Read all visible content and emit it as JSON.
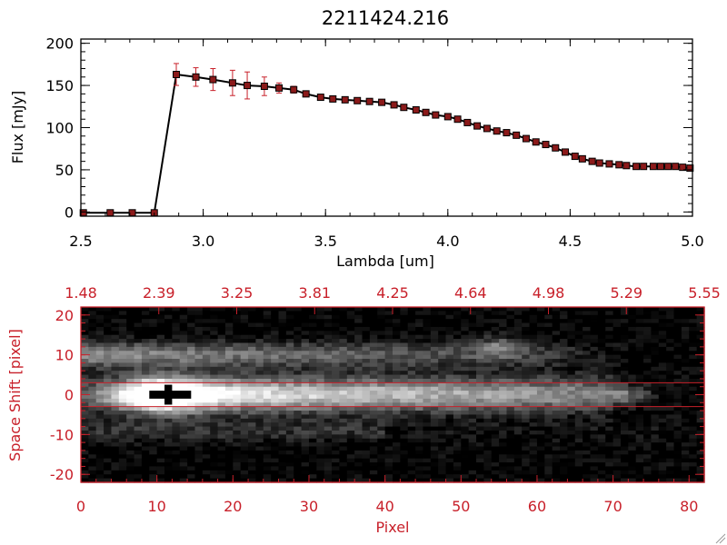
{
  "chart_data": [
    {
      "type": "line",
      "title": "2211424.216",
      "xlabel": "Lambda [um]",
      "ylabel": "Flux [mJy]",
      "xlim": [
        2.5,
        5.0
      ],
      "ylim": [
        -5,
        205
      ],
      "x_ticks": [
        "2.5",
        "3.0",
        "3.5",
        "4.0",
        "4.5",
        "5.0"
      ],
      "y_ticks": [
        "0",
        "50",
        "100",
        "150",
        "200"
      ],
      "series": [
        {
          "color": "#000000",
          "marker_color": "#8b1a1a",
          "errorbar_color": "#c8202a",
          "points": [
            {
              "x": 2.51,
              "y": -1
            },
            {
              "x": 2.62,
              "y": -1
            },
            {
              "x": 2.71,
              "y": -1
            },
            {
              "x": 2.8,
              "y": -1
            },
            {
              "x": 2.89,
              "y": 163,
              "err": 13
            },
            {
              "x": 2.97,
              "y": 160,
              "err": 11
            },
            {
              "x": 3.04,
              "y": 157,
              "err": 13
            },
            {
              "x": 3.12,
              "y": 153,
              "err": 15
            },
            {
              "x": 3.18,
              "y": 150,
              "err": 16
            },
            {
              "x": 3.25,
              "y": 149,
              "err": 11
            },
            {
              "x": 3.31,
              "y": 147,
              "err": 6
            },
            {
              "x": 3.37,
              "y": 145,
              "err": 4
            },
            {
              "x": 3.42,
              "y": 140
            },
            {
              "x": 3.48,
              "y": 136
            },
            {
              "x": 3.53,
              "y": 134
            },
            {
              "x": 3.58,
              "y": 133
            },
            {
              "x": 3.63,
              "y": 132
            },
            {
              "x": 3.68,
              "y": 131
            },
            {
              "x": 3.73,
              "y": 130
            },
            {
              "x": 3.78,
              "y": 127
            },
            {
              "x": 3.82,
              "y": 124
            },
            {
              "x": 3.87,
              "y": 121
            },
            {
              "x": 3.91,
              "y": 118
            },
            {
              "x": 3.95,
              "y": 115
            },
            {
              "x": 4.0,
              "y": 113
            },
            {
              "x": 4.04,
              "y": 110
            },
            {
              "x": 4.08,
              "y": 106
            },
            {
              "x": 4.12,
              "y": 102
            },
            {
              "x": 4.16,
              "y": 99
            },
            {
              "x": 4.2,
              "y": 96
            },
            {
              "x": 4.24,
              "y": 94
            },
            {
              "x": 4.28,
              "y": 91
            },
            {
              "x": 4.32,
              "y": 87
            },
            {
              "x": 4.36,
              "y": 83
            },
            {
              "x": 4.4,
              "y": 80
            },
            {
              "x": 4.44,
              "y": 76
            },
            {
              "x": 4.48,
              "y": 71
            },
            {
              "x": 4.52,
              "y": 66
            },
            {
              "x": 4.55,
              "y": 63
            },
            {
              "x": 4.59,
              "y": 60
            },
            {
              "x": 4.62,
              "y": 58
            },
            {
              "x": 4.66,
              "y": 57
            },
            {
              "x": 4.7,
              "y": 56
            },
            {
              "x": 4.73,
              "y": 55
            },
            {
              "x": 4.77,
              "y": 54
            },
            {
              "x": 4.8,
              "y": 54
            },
            {
              "x": 4.84,
              "y": 54
            },
            {
              "x": 4.87,
              "y": 54
            },
            {
              "x": 4.9,
              "y": 54
            },
            {
              "x": 4.93,
              "y": 54
            },
            {
              "x": 4.96,
              "y": 53
            },
            {
              "x": 4.99,
              "y": 52
            }
          ]
        }
      ]
    },
    {
      "type": "heatmap",
      "xlabel": "Pixel",
      "ylabel": "Space Shift [pixel]",
      "xlim": [
        0,
        82
      ],
      "ylim": [
        -22,
        22
      ],
      "x_ticks": [
        "0",
        "10",
        "20",
        "30",
        "40",
        "50",
        "60",
        "70",
        "80"
      ],
      "y_ticks": [
        "-20",
        "-10",
        "0",
        "10",
        "20"
      ],
      "top_x_ticks": [
        "1.48",
        "2.39",
        "3.25",
        "3.81",
        "4.25",
        "4.64",
        "4.98",
        "5.29",
        "5.55"
      ],
      "extraction_window": [
        -3,
        3
      ],
      "colormap": "grayscale",
      "accent_color": "#c8202a"
    }
  ]
}
